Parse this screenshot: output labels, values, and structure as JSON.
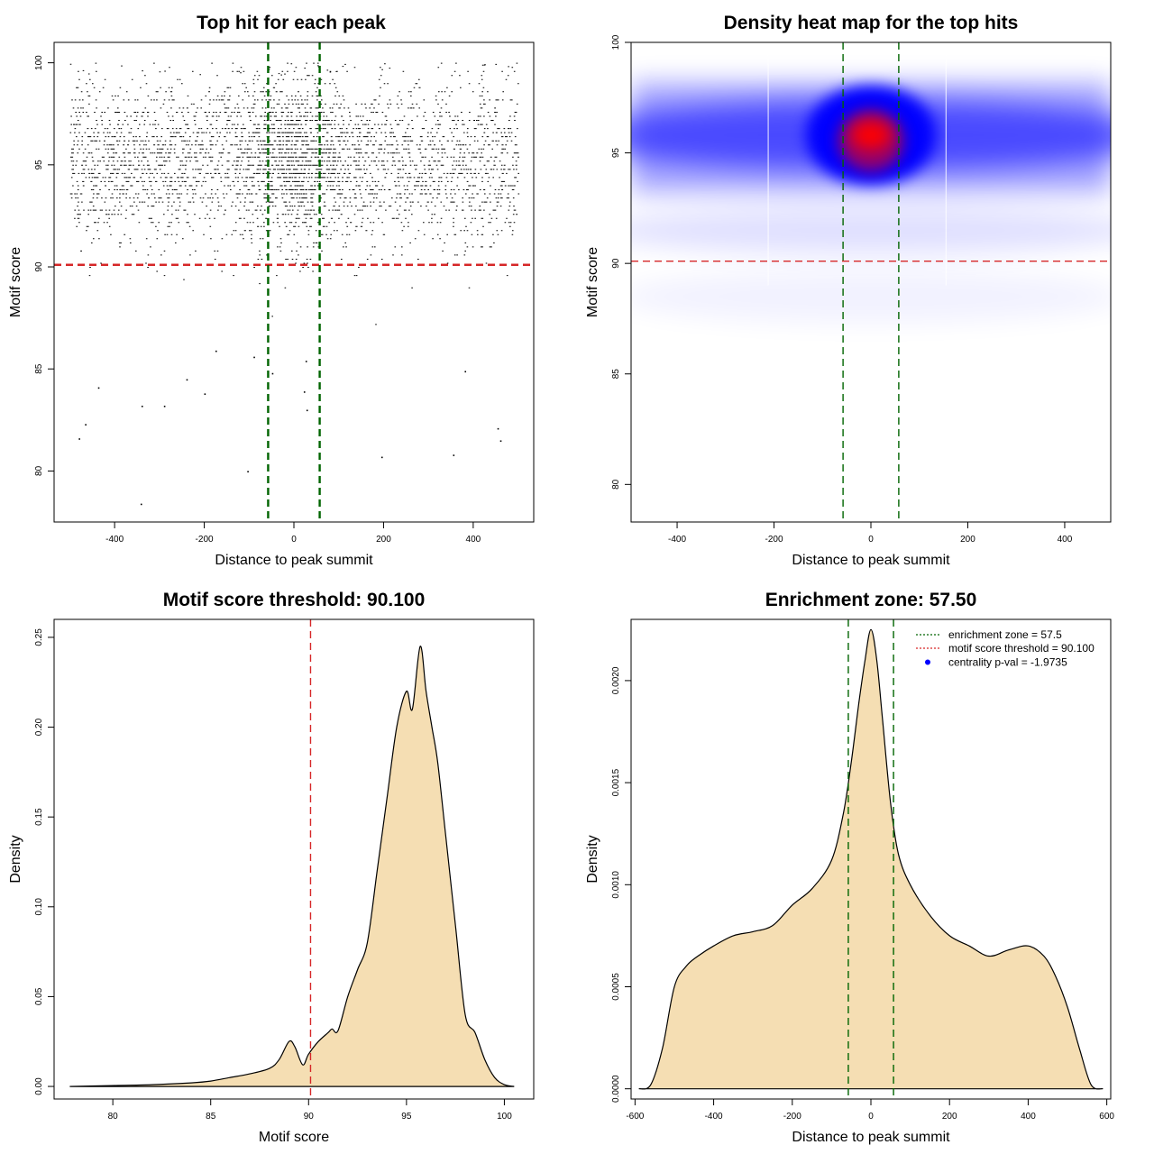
{
  "chart_data": [
    {
      "type": "scatter",
      "title": "Top hit for each peak",
      "xlabel": "Distance to peak summit",
      "ylabel": "Motif score",
      "xlim": [
        -535,
        535
      ],
      "ylim": [
        77.5,
        101
      ],
      "xticks": [
        -400,
        -200,
        0,
        200,
        400
      ],
      "yticks": [
        80,
        85,
        90,
        95,
        100
      ],
      "point_count": 7000,
      "points_sample": [
        [
          -480,
          81.6
        ],
        [
          -466,
          82.3
        ],
        [
          -437,
          84.1
        ],
        [
          -342,
          78.4
        ],
        [
          -340,
          83.2
        ],
        [
          -290,
          83.2
        ],
        [
          -200,
          83.8
        ],
        [
          -240,
          84.5
        ],
        [
          -104,
          80.0
        ],
        [
          26,
          85.4
        ],
        [
          28,
          83.0
        ],
        [
          22,
          83.9
        ],
        [
          195,
          80.7
        ],
        [
          355,
          80.8
        ],
        [
          454,
          82.1
        ],
        [
          460,
          81.5
        ],
        [
          -175,
          85.9
        ],
        [
          -90,
          85.6
        ],
        [
          -49,
          84.8
        ],
        [
          381,
          84.9
        ]
      ],
      "distribution": {
        "x_range": [
          -500,
          500
        ],
        "central_x_sd": 60,
        "score_mean": 95.2,
        "score_sd": 2.0
      },
      "hlines": [
        {
          "y": 90.1,
          "color": "#d62728",
          "style": "dashed"
        }
      ],
      "vlines": [
        {
          "x": -57.5,
          "color": "#006400",
          "style": "dashed"
        },
        {
          "x": 57.5,
          "color": "#006400",
          "style": "dashed"
        }
      ]
    },
    {
      "type": "heatmap",
      "title": "Density heat map for the top hits",
      "xlabel": "Distance to peak summit",
      "ylabel": "Motif score",
      "xlim": [
        -495,
        495
      ],
      "ylim": [
        78.3,
        100
      ],
      "xticks": [
        -400,
        -200,
        0,
        200,
        400
      ],
      "yticks": [
        80,
        85,
        90,
        95,
        100
      ],
      "colors": [
        "#ffffff",
        "#0000ff",
        "#ff0000"
      ],
      "hot_spot": {
        "x": 0,
        "y": 95.8
      },
      "hlines": [
        {
          "y": 90.1,
          "color": "#d62728",
          "style": "dashed"
        }
      ],
      "vlines": [
        {
          "x": -57.5,
          "color": "#006400",
          "style": "dashed"
        },
        {
          "x": 57.5,
          "color": "#006400",
          "style": "dashed"
        }
      ]
    },
    {
      "type": "area",
      "title": "Motif score threshold: 90.100",
      "xlabel": "Motif score",
      "ylabel": "Density",
      "xlim": [
        77,
        101.5
      ],
      "ylim": [
        -0.007,
        0.26
      ],
      "xticks": [
        80,
        85,
        90,
        95,
        100
      ],
      "yticks": [
        0.0,
        0.05,
        0.1,
        0.15,
        0.2,
        0.25
      ],
      "ytick_labels": [
        "0.00",
        "0.05",
        "0.10",
        "0.15",
        "0.20",
        "0.25"
      ],
      "fill": "#f5deb3",
      "x": [
        77.8,
        80,
        82,
        84,
        85,
        86,
        87,
        88,
        88.5,
        89,
        89.3,
        89.7,
        90,
        90.5,
        91,
        91.2,
        91.5,
        92,
        92.5,
        93,
        93.5,
        94,
        94.5,
        95,
        95.3,
        95.7,
        96,
        96.3,
        96.6,
        97,
        97.5,
        98,
        98.5,
        99,
        99.5,
        100,
        100.5
      ],
      "y": [
        0.0,
        0.0005,
        0.001,
        0.002,
        0.003,
        0.005,
        0.007,
        0.01,
        0.015,
        0.025,
        0.022,
        0.012,
        0.018,
        0.025,
        0.03,
        0.032,
        0.031,
        0.05,
        0.065,
        0.08,
        0.12,
        0.16,
        0.2,
        0.22,
        0.21,
        0.245,
        0.22,
        0.2,
        0.18,
        0.14,
        0.09,
        0.04,
        0.03,
        0.015,
        0.005,
        0.001,
        0.0
      ],
      "vlines": [
        {
          "x": 90.1,
          "color": "#d62728",
          "style": "dashed"
        }
      ]
    },
    {
      "type": "area",
      "title": "Enrichment zone: 57.50",
      "xlabel": "Distance to peak summit",
      "ylabel": "Density",
      "xlim": [
        -610,
        610
      ],
      "ylim": [
        -5e-05,
        0.0023
      ],
      "xticks": [
        -600,
        -400,
        -200,
        0,
        200,
        400,
        600
      ],
      "yticks": [
        0.0,
        0.0005,
        0.001,
        0.0015,
        0.002
      ],
      "ytick_labels": [
        "0.0000",
        "0.0005",
        "0.0010",
        "0.0015",
        "0.0020"
      ],
      "fill": "#f5deb3",
      "x": [
        -590,
        -560,
        -530,
        -500,
        -470,
        -440,
        -400,
        -350,
        -300,
        -250,
        -200,
        -150,
        -100,
        -70,
        -50,
        -30,
        -15,
        0,
        15,
        30,
        50,
        70,
        100,
        150,
        200,
        250,
        300,
        350,
        400,
        440,
        470,
        500,
        530,
        560,
        590
      ],
      "y": [
        0.0,
        2e-05,
        0.0002,
        0.0005,
        0.0006,
        0.00065,
        0.0007,
        0.00075,
        0.00077,
        0.0008,
        0.0009,
        0.00098,
        0.00112,
        0.00135,
        0.0016,
        0.0019,
        0.0021,
        0.00225,
        0.0021,
        0.0018,
        0.0014,
        0.00115,
        0.001,
        0.00085,
        0.00075,
        0.0007,
        0.00065,
        0.00068,
        0.0007,
        0.00065,
        0.00055,
        0.0004,
        0.0002,
        2e-05,
        0.0
      ],
      "vlines": [
        {
          "x": -57.5,
          "color": "#006400",
          "style": "dashed"
        },
        {
          "x": 57.5,
          "color": "#006400",
          "style": "dashed"
        }
      ],
      "legend": {
        "position": "top-right",
        "entries": [
          {
            "label": "enrichment zone = 57.5",
            "color": "#006400",
            "kind": "dotted-line"
          },
          {
            "label": "motif score threshold = 90.100",
            "color": "#d62728",
            "kind": "dotted-line"
          },
          {
            "label": "centrality p-val = -1.9735",
            "color": "#0000ff",
            "kind": "dot"
          }
        ]
      }
    }
  ]
}
